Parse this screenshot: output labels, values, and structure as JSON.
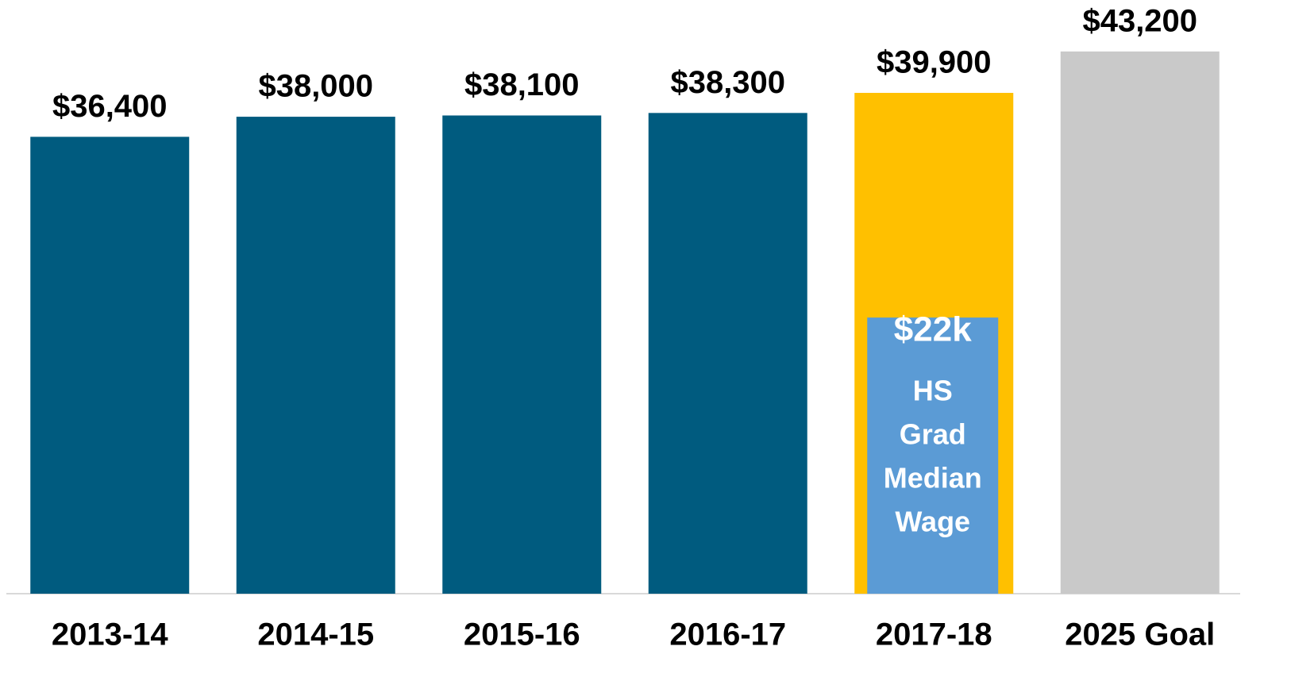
{
  "chart_data": {
    "type": "bar",
    "categories": [
      "2013-14",
      "2014-15",
      "2015-16",
      "2016-17",
      "2017-18",
      "2025 Goal"
    ],
    "values": [
      36400,
      38000,
      38100,
      38300,
      39900,
      43200
    ],
    "value_labels": [
      "$36,400",
      "$38,000",
      "$38,100",
      "$38,300",
      "$39,900",
      "$43,200"
    ],
    "colors": [
      "#005b7f",
      "#005b7f",
      "#005b7f",
      "#005b7f",
      "#ffc000",
      "#c9c9c9"
    ],
    "ylim": [
      0,
      47300
    ],
    "overlay": {
      "value": 22000,
      "label": "$22k",
      "text": [
        "HS",
        "Grad",
        "Median",
        "Wage"
      ],
      "color": "#5b9bd5"
    }
  }
}
